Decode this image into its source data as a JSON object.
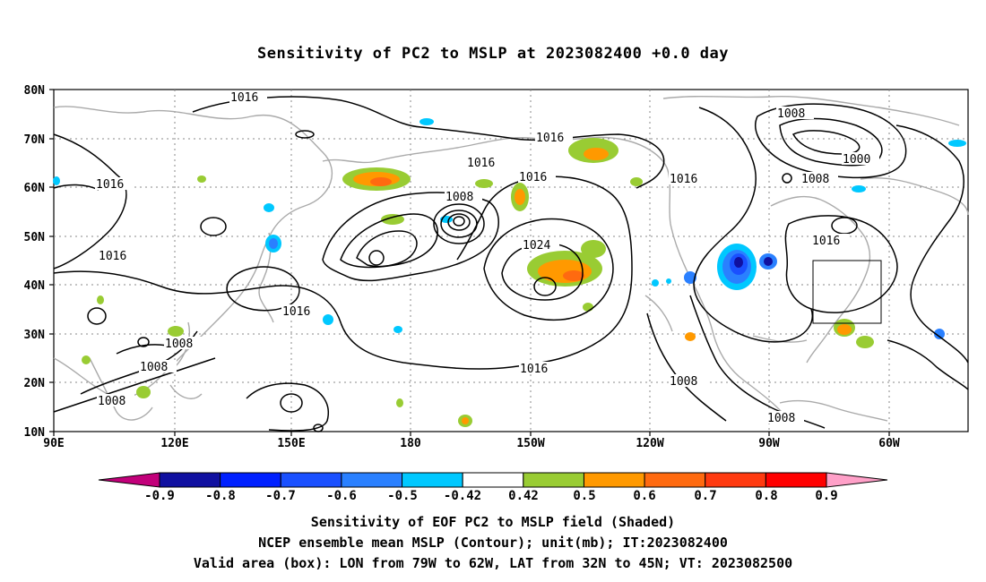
{
  "title": "Sensitivity of PC2 to MSLP at 2023082400 +0.0 day",
  "lat_labels": [
    "80N",
    "70N",
    "60N",
    "50N",
    "40N",
    "30N",
    "20N",
    "10N"
  ],
  "lon_labels": [
    "90E",
    "120E",
    "150E",
    "180",
    "150W",
    "120W",
    "90W",
    "60W"
  ],
  "contour_labels": [
    "1016",
    "1016",
    "1016",
    "1016",
    "1016",
    "1016",
    "1016",
    "1016",
    "1008",
    "1008",
    "1008",
    "1008",
    "1008",
    "1008",
    "1008",
    "1000",
    "1024",
    "1016",
    "1008",
    "1016"
  ],
  "colorbar": {
    "labels": [
      "-0.9",
      "-0.8",
      "-0.7",
      "-0.6",
      "-0.5",
      "-0.42",
      "0.42",
      "0.5",
      "0.6",
      "0.7",
      "0.8",
      "0.9"
    ],
    "colors": [
      "#c2007a",
      "#1010a0",
      "#0020ff",
      "#1a50ff",
      "#2a80ff",
      "#00c8ff",
      "#ffffff",
      "#99cc33",
      "#ff9900",
      "#ff6a10",
      "#ff3a10",
      "#ff0000",
      "#ffa0c8"
    ]
  },
  "captions": [
    "Sensitivity of EOF PC2 to MSLP field (Shaded)",
    "NCEP ensemble mean MSLP (Contour); unit(mb); IT:2023082400",
    "Valid area (box): LON from 79W to 62W, LAT from 32N to 45N; VT: 2023082500"
  ]
}
